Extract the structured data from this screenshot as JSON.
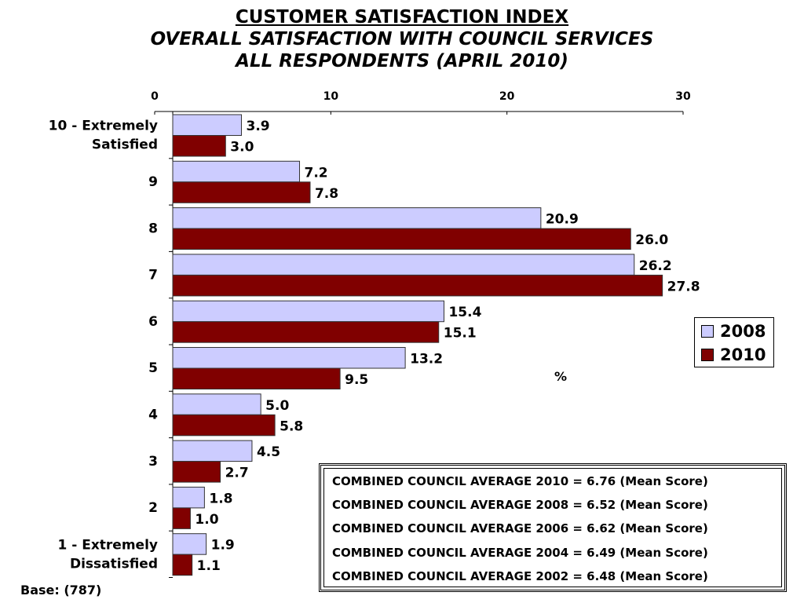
{
  "chart_data": {
    "type": "bar",
    "orientation": "horizontal",
    "title": "CUSTOMER SATISFACTION INDEX",
    "subtitle_lines": [
      "OVERALL SATISFACTION WITH COUNCIL SERVICES",
      "ALL RESPONDENTS (APRIL 2010)"
    ],
    "categories": [
      [
        "10 - Extremely",
        "Satisfied"
      ],
      [
        "9"
      ],
      [
        "8"
      ],
      [
        "7"
      ],
      [
        "6"
      ],
      [
        "5"
      ],
      [
        "4"
      ],
      [
        "3"
      ],
      [
        "2"
      ],
      [
        "1 - Extremely",
        "Dissatisfied"
      ]
    ],
    "series": [
      {
        "name": "2008",
        "color": "#ccccff",
        "values": [
          3.9,
          7.2,
          20.9,
          26.2,
          15.4,
          13.2,
          5.0,
          4.5,
          1.8,
          1.9
        ],
        "labels": [
          "3.9",
          "7.2",
          "20.9",
          "26.2",
          "15.4",
          "13.2",
          "5.0",
          "4.5",
          "1.8",
          "1.9"
        ]
      },
      {
        "name": "2010",
        "color": "#800000",
        "values": [
          3.0,
          7.8,
          26.0,
          27.8,
          15.1,
          9.5,
          5.8,
          2.7,
          1.0,
          1.1
        ],
        "labels": [
          "3.0",
          "7.8",
          "26.0",
          "27.8",
          "15.1",
          "9.5",
          "5.8",
          "2.7",
          "1.0",
          "1.1"
        ]
      }
    ],
    "x_ticks": [
      "0",
      "10",
      "20",
      "30"
    ],
    "xlim": [
      0,
      30
    ],
    "axis_position": "top",
    "xlabel": "%",
    "legend_position": "right",
    "grid": false
  },
  "notes": {
    "lines": [
      "COMBINED COUNCIL AVERAGE 2010 = 6.76 (Mean Score)",
      "COMBINED COUNCIL AVERAGE 2008 = 6.52 (Mean Score)",
      "COMBINED COUNCIL AVERAGE 2006 = 6.62 (Mean Score)",
      "COMBINED COUNCIL AVERAGE 2004 = 6.49 (Mean Score)",
      "COMBINED COUNCIL AVERAGE 2002 = 6.48 (Mean Score)"
    ]
  },
  "base": "Base: (787)"
}
